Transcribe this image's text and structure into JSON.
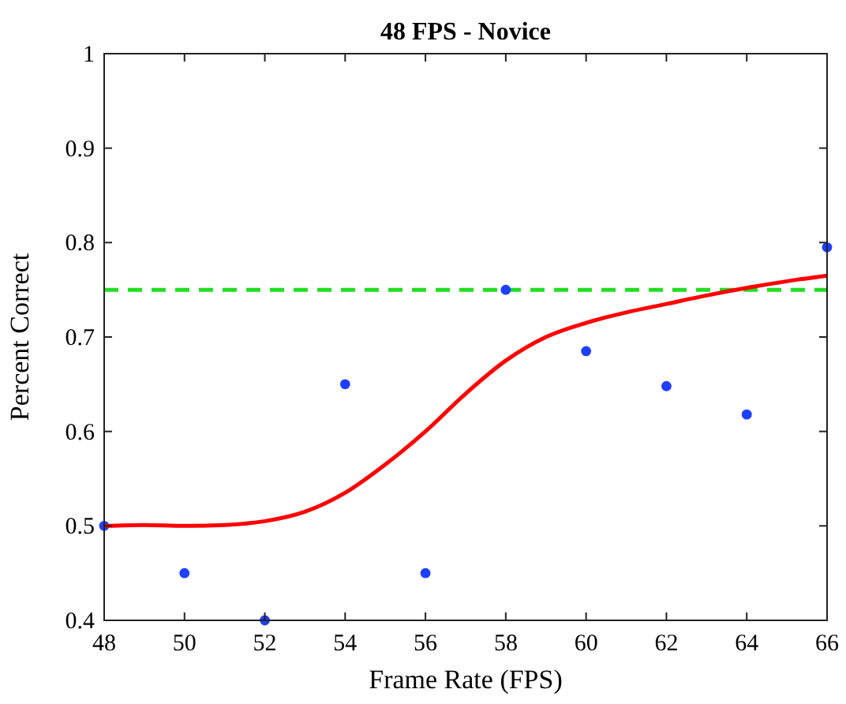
{
  "chart_data": {
    "type": "scatter",
    "title": "48 FPS - Novice",
    "xlabel": "Frame Rate (FPS)",
    "ylabel": "Percent Correct",
    "xlim": [
      48,
      66
    ],
    "xticks": [
      48,
      50,
      52,
      54,
      56,
      58,
      60,
      62,
      64,
      66
    ],
    "ylim": [
      0.4,
      1
    ],
    "yticks": [
      0.4,
      0.5,
      0.6,
      0.7,
      0.8,
      0.9,
      1
    ],
    "grid": false,
    "series": [
      {
        "color": "#1f3fff",
        "marker": "circle",
        "x": [
          48,
          50,
          52,
          54,
          56,
          58,
          60,
          62,
          64,
          66
        ],
        "values": [
          0.5,
          0.45,
          0.4,
          0.65,
          0.45,
          0.75,
          0.685,
          0.648,
          0.618,
          0.795
        ]
      },
      {
        "type": "line",
        "color": "#ff0000",
        "marker": "none",
        "x": [
          48,
          49,
          50,
          51,
          52,
          53,
          54,
          55,
          56,
          57,
          58,
          59,
          60,
          61,
          62,
          63,
          64,
          65,
          66
        ],
        "values": [
          0.5,
          0.501,
          0.5,
          0.501,
          0.505,
          0.515,
          0.535,
          0.565,
          0.6,
          0.64,
          0.675,
          0.7,
          0.715,
          0.726,
          0.735,
          0.744,
          0.752,
          0.759,
          0.765
        ]
      }
    ],
    "ref_lines": [
      {
        "axis": "y",
        "value": 0.75,
        "color": "#22dd22",
        "line_style": "dashed"
      }
    ]
  }
}
